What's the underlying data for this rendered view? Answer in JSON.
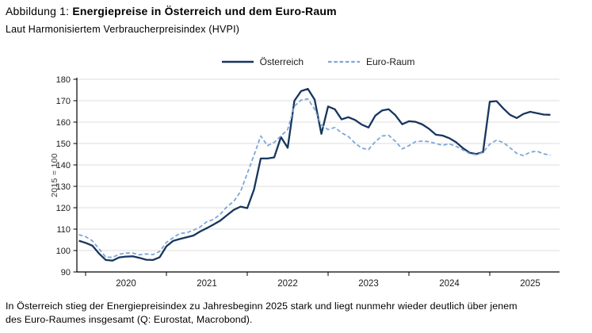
{
  "header": {
    "title_prefix": "Abbildung 1: ",
    "title_bold": "Energiepreise in Österreich und dem Euro-Raum",
    "subtitle": "Laut Harmonisiertem Verbraucherpreisindex (HVPI)"
  },
  "caption": {
    "line1": "In Österreich stieg der Energiepreisindex zu Jahresbeginn 2025 stark und liegt nunmehr wieder deutlich über jenem",
    "line2": "des Euro-Raumes insgesamt (Q: Eurostat, Macrobond)."
  },
  "colors": {
    "austria_line": "#17365d",
    "euro_line": "#7ea6d9",
    "gridline": "#dcdcdc",
    "axis": "#000000",
    "tick_text": "#1a1a1a"
  },
  "legend": {
    "items": [
      {
        "label": "Österreich",
        "style": "solid",
        "color": "#17365d"
      },
      {
        "label": "Euro-Raum",
        "style": "dashed",
        "color": "#7ea6d9"
      }
    ]
  },
  "chart_data": {
    "type": "line",
    "title": "Energiepreise in Österreich und dem Euro-Raum",
    "subtitle": "Laut Harmonisiertem Verbraucherpreisindex (HVPI)",
    "xlabel": "",
    "ylabel": "2015 = 100",
    "ylim": [
      90,
      180
    ],
    "yticks": [
      90,
      100,
      110,
      120,
      130,
      140,
      150,
      160,
      170,
      180
    ],
    "grid": true,
    "legend_position": "top",
    "x_start": "2019-12",
    "x_end": "2025-10",
    "x_months": [
      "2019-12",
      "2020-01",
      "2020-02",
      "2020-03",
      "2020-04",
      "2020-05",
      "2020-06",
      "2020-07",
      "2020-08",
      "2020-09",
      "2020-10",
      "2020-11",
      "2020-12",
      "2021-01",
      "2021-02",
      "2021-03",
      "2021-04",
      "2021-05",
      "2021-06",
      "2021-07",
      "2021-08",
      "2021-09",
      "2021-10",
      "2021-11",
      "2021-12",
      "2022-01",
      "2022-02",
      "2022-03",
      "2022-04",
      "2022-05",
      "2022-06",
      "2022-07",
      "2022-08",
      "2022-09",
      "2022-10",
      "2022-11",
      "2022-12",
      "2023-01",
      "2023-02",
      "2023-03",
      "2023-04",
      "2023-05",
      "2023-06",
      "2023-07",
      "2023-08",
      "2023-09",
      "2023-10",
      "2023-11",
      "2023-12",
      "2024-01",
      "2024-02",
      "2024-03",
      "2024-04",
      "2024-05",
      "2024-06",
      "2024-07",
      "2024-08",
      "2024-09",
      "2024-10",
      "2024-11",
      "2024-12",
      "2025-01",
      "2025-02",
      "2025-03",
      "2025-04",
      "2025-05",
      "2025-06",
      "2025-07",
      "2025-08",
      "2025-09",
      "2025-10"
    ],
    "year_ticks": [
      {
        "label": "2020",
        "index": 1
      },
      {
        "label": "2021",
        "index": 13
      },
      {
        "label": "2022",
        "index": 25
      },
      {
        "label": "2023",
        "index": 37
      },
      {
        "label": "2024",
        "index": 49
      },
      {
        "label": "2025",
        "index": 61
      }
    ],
    "series": [
      {
        "name": "Österreich",
        "color": "#17365d",
        "dash": "",
        "width": 2.3,
        "values": [
          104.6,
          103.6,
          102.3,
          98.6,
          95.6,
          95.3,
          96.8,
          97.2,
          97.3,
          96.6,
          95.7,
          95.6,
          96.9,
          102.0,
          104.5,
          105.4,
          106.2,
          107.0,
          108.9,
          110.5,
          112.2,
          114.0,
          116.5,
          119.0,
          120.5,
          119.8,
          128.5,
          143.0,
          143.0,
          143.5,
          153.0,
          148.0,
          170.0,
          174.5,
          175.5,
          170.5,
          154.5,
          167.3,
          166.0,
          161.3,
          162.3,
          161.0,
          158.8,
          157.5,
          163.0,
          165.4,
          166.0,
          163.2,
          159.0,
          160.4,
          160.1,
          158.9,
          156.8,
          154.1,
          153.7,
          152.5,
          150.6,
          147.9,
          145.7,
          145.1,
          146.0,
          169.5,
          169.8,
          166.4,
          163.4,
          161.9,
          163.8,
          164.8,
          164.2,
          163.5,
          163.4
        ]
      },
      {
        "name": "Euro-Raum",
        "color": "#7ea6d9",
        "dash": "5 3",
        "width": 1.8,
        "values": [
          107.4,
          106.5,
          104.5,
          100.8,
          96.9,
          96.8,
          98.3,
          98.8,
          98.8,
          98.0,
          98.4,
          98.1,
          99.6,
          103.8,
          106.0,
          108.0,
          108.3,
          109.5,
          111.0,
          113.5,
          114.5,
          117.0,
          120.5,
          123.0,
          127.5,
          136.0,
          144.5,
          153.5,
          149.0,
          150.5,
          153.5,
          156.5,
          167.5,
          170.3,
          170.8,
          166.0,
          158.5,
          156.5,
          157.5,
          155.0,
          153.3,
          150.2,
          147.8,
          147.2,
          150.8,
          153.5,
          153.8,
          151.0,
          147.5,
          149.0,
          150.9,
          151.1,
          150.9,
          150.0,
          149.2,
          149.8,
          148.7,
          147.0,
          145.3,
          144.7,
          145.8,
          149.7,
          151.5,
          150.5,
          148.0,
          145.4,
          144.3,
          146.0,
          146.4,
          145.2,
          144.5
        ]
      }
    ]
  }
}
